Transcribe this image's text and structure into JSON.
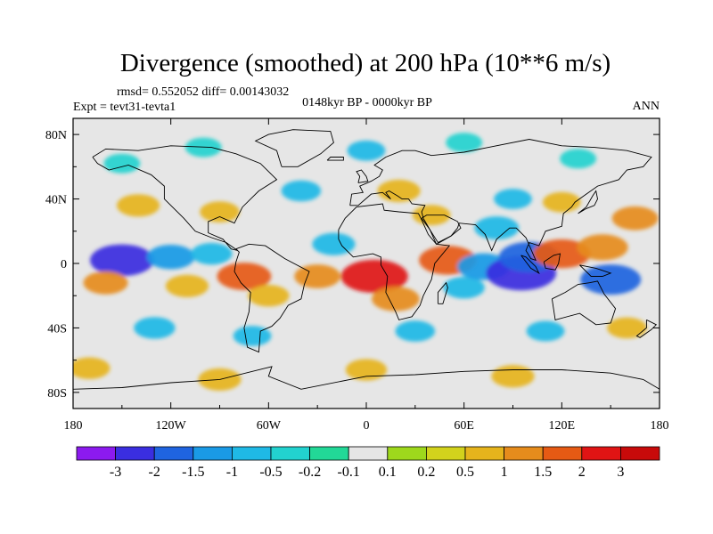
{
  "chart_data": {
    "type": "filled_contour_map",
    "title": "Divergence (smoothed) at 200 hPa (10**6 m/s)",
    "stats_line": "rmsd= 0.552052 diff= 0.00143032",
    "experiment_line": "Expt = tevt31-tevta1",
    "period_line": "0148kyr BP - 0000kyr BP",
    "season_label": "ANN",
    "x_ticks": [
      "180",
      "120W",
      "60W",
      "0",
      "60E",
      "120E",
      "180"
    ],
    "y_ticks": [
      "80N",
      "40N",
      "0",
      "40S",
      "80S"
    ],
    "lon_range": [
      -180,
      180
    ],
    "lat_range": [
      -90,
      90
    ],
    "colorbar": {
      "labels": [
        "-3",
        "-2",
        "-1.5",
        "-1",
        "-0.5",
        "-0.2",
        "-0.1",
        "0.1",
        "0.2",
        "0.5",
        "1",
        "1.5",
        "2",
        "3"
      ],
      "colors": [
        "#8c1aef",
        "#3a2ee0",
        "#1f64e0",
        "#1a9ae6",
        "#1fb9e6",
        "#22d2cf",
        "#22d897",
        "#e6e6e6",
        "#9ed81c",
        "#d2d21c",
        "#e6b41c",
        "#e68c1c",
        "#e65a14",
        "#e01414",
        "#c80a0a"
      ]
    },
    "field_regions": [
      {
        "lon": -150,
        "lat": 2,
        "value": -2.2
      },
      {
        "lon": -120,
        "lat": 4,
        "value": -1.2
      },
      {
        "lon": -95,
        "lat": 6,
        "value": -0.8
      },
      {
        "lon": -160,
        "lat": -12,
        "value": 1.0
      },
      {
        "lon": -110,
        "lat": -14,
        "value": 0.9
      },
      {
        "lon": -75,
        "lat": -8,
        "value": 1.6
      },
      {
        "lon": -60,
        "lat": -20,
        "value": 0.8
      },
      {
        "lon": -30,
        "lat": -8,
        "value": 1.1
      },
      {
        "lon": -20,
        "lat": 12,
        "value": -0.9
      },
      {
        "lon": 5,
        "lat": -8,
        "value": 2.4
      },
      {
        "lon": 18,
        "lat": -22,
        "value": 1.2
      },
      {
        "lon": 50,
        "lat": 2,
        "value": 1.8
      },
      {
        "lon": 60,
        "lat": -15,
        "value": -0.8
      },
      {
        "lon": 72,
        "lat": -2,
        "value": -1.5
      },
      {
        "lon": 95,
        "lat": -6,
        "value": -2.6
      },
      {
        "lon": 100,
        "lat": 4,
        "value": -2.0
      },
      {
        "lon": 120,
        "lat": 6,
        "value": 1.8
      },
      {
        "lon": 145,
        "lat": 10,
        "value": 1.4
      },
      {
        "lon": 150,
        "lat": -10,
        "value": -2.0
      },
      {
        "lon": 165,
        "lat": 28,
        "value": 1.1
      },
      {
        "lon": -140,
        "lat": 36,
        "value": 0.9
      },
      {
        "lon": -90,
        "lat": 32,
        "value": 0.7
      },
      {
        "lon": -40,
        "lat": 45,
        "value": -0.7
      },
      {
        "lon": 20,
        "lat": 45,
        "value": 0.9
      },
      {
        "lon": 40,
        "lat": 30,
        "value": 0.6
      },
      {
        "lon": 80,
        "lat": 22,
        "value": -1.0
      },
      {
        "lon": 90,
        "lat": 40,
        "value": -0.6
      },
      {
        "lon": 120,
        "lat": 38,
        "value": 0.6
      },
      {
        "lon": -150,
        "lat": 62,
        "value": -0.5
      },
      {
        "lon": -100,
        "lat": 72,
        "value": -0.5
      },
      {
        "lon": 0,
        "lat": 70,
        "value": -0.6
      },
      {
        "lon": 60,
        "lat": 75,
        "value": -0.5
      },
      {
        "lon": 130,
        "lat": 65,
        "value": -0.5
      },
      {
        "lon": -130,
        "lat": -40,
        "value": -0.8
      },
      {
        "lon": -70,
        "lat": -45,
        "value": -0.6
      },
      {
        "lon": 30,
        "lat": -42,
        "value": -0.7
      },
      {
        "lon": 110,
        "lat": -42,
        "value": -0.6
      },
      {
        "lon": 160,
        "lat": -40,
        "value": 0.7
      },
      {
        "lon": -170,
        "lat": -65,
        "value": 0.8
      },
      {
        "lon": -90,
        "lat": -72,
        "value": 0.9
      },
      {
        "lon": 0,
        "lat": -66,
        "value": 0.8
      },
      {
        "lon": 90,
        "lat": -70,
        "value": 0.9
      }
    ]
  }
}
